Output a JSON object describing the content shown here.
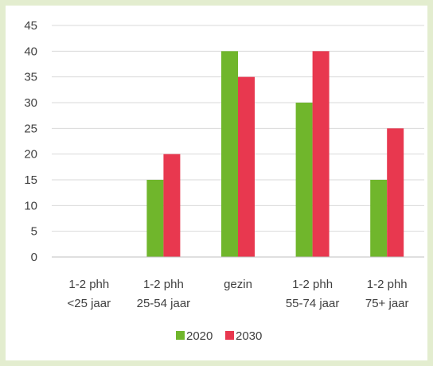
{
  "chart_data": {
    "type": "bar",
    "categories": [
      [
        "1-2 phh",
        "<25 jaar"
      ],
      [
        "1-2 phh",
        "25-54 jaar"
      ],
      [
        "gezin"
      ],
      [
        "1-2 phh",
        "55-74 jaar"
      ],
      [
        "1-2 phh",
        "75+ jaar"
      ]
    ],
    "series": [
      {
        "name": "2020",
        "values": [
          0,
          15,
          40,
          30,
          15
        ],
        "color": "#70b62c"
      },
      {
        "name": "2030",
        "values": [
          0,
          20,
          35,
          40,
          25
        ],
        "color": "#e8384f"
      }
    ],
    "ylim": [
      0,
      45
    ],
    "yticks": [
      0,
      5,
      10,
      15,
      20,
      25,
      30,
      35,
      40,
      45
    ],
    "grid": true,
    "legend": "bottom",
    "title": "",
    "xlabel": "",
    "ylabel": ""
  }
}
